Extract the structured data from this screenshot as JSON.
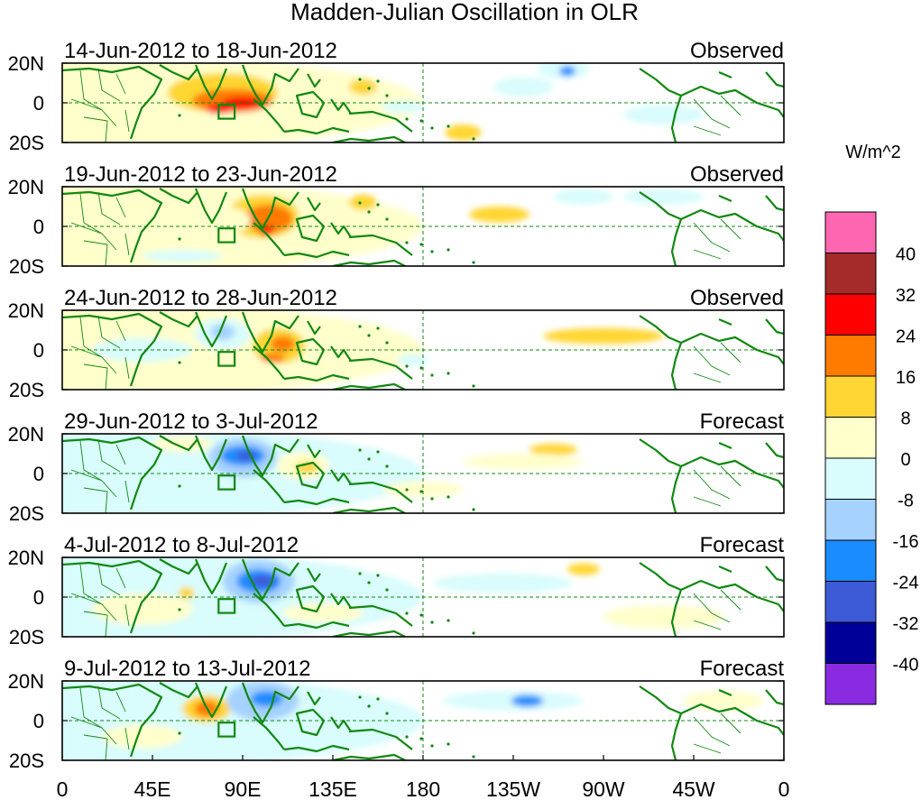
{
  "chart_data": {
    "type": "heatmap",
    "title": "Madden-Julian Oscillation in OLR",
    "units": "W/m^2",
    "x_ticks": [
      "0",
      "45E",
      "90E",
      "135E",
      "180",
      "135W",
      "90W",
      "45W",
      "0"
    ],
    "x_range_deg_east": [
      0,
      360
    ],
    "y_ticks": [
      "20N",
      "0",
      "20S"
    ],
    "y_range_deg": [
      -20,
      20
    ],
    "colorbar": {
      "labels": [
        "40",
        "32",
        "24",
        "16",
        "8",
        "0",
        "-8",
        "-16",
        "-24",
        "-32",
        "-40"
      ],
      "colors": [
        "#ff66b2",
        "#a52a2a",
        "#ff0000",
        "#ff7b00",
        "#ffd633",
        "#ffffcc",
        "#d9fcfc",
        "#a6d2ff",
        "#1a8cff",
        "#3c5ad6",
        "#000099",
        "#8a2be2"
      ]
    },
    "panels": [
      {
        "period": "14-Jun-2012 to 18-Jun-2012",
        "status": "Observed",
        "anomalies": [
          {
            "lon": 0,
            "lat": 0,
            "w": 360,
            "h": 50,
            "value": 2
          },
          {
            "lon": 80,
            "lat": 5,
            "w": 55,
            "h": 20,
            "value": 14
          },
          {
            "lon": 85,
            "lat": 1,
            "w": 40,
            "h": 12,
            "value": 22
          },
          {
            "lon": 90,
            "lat": 0,
            "w": 20,
            "h": 6,
            "value": 30
          },
          {
            "lon": 78,
            "lat": -3,
            "w": 12,
            "h": 5,
            "value": 30
          },
          {
            "lon": 150,
            "lat": 8,
            "w": 14,
            "h": 8,
            "value": 9
          },
          {
            "lon": 170,
            "lat": -2,
            "w": 22,
            "h": 6,
            "value": -3
          },
          {
            "lon": 200,
            "lat": -15,
            "w": 18,
            "h": 8,
            "value": 9
          },
          {
            "lon": 250,
            "lat": 17,
            "w": 26,
            "h": 10,
            "value": -5
          },
          {
            "lon": 252,
            "lat": 16,
            "w": 8,
            "h": 5,
            "value": -20
          },
          {
            "lon": 230,
            "lat": 8,
            "w": 30,
            "h": 10,
            "value": -4
          },
          {
            "lon": 300,
            "lat": -6,
            "w": 40,
            "h": 10,
            "value": -3
          }
        ]
      },
      {
        "period": "19-Jun-2012 to 23-Jun-2012",
        "status": "Observed",
        "anomalies": [
          {
            "lon": 0,
            "lat": 0,
            "w": 360,
            "h": 50,
            "value": 2
          },
          {
            "lon": 100,
            "lat": 5,
            "w": 36,
            "h": 22,
            "value": 14
          },
          {
            "lon": 103,
            "lat": 4,
            "w": 24,
            "h": 14,
            "value": 22
          },
          {
            "lon": 102,
            "lat": -2,
            "w": 8,
            "h": 5,
            "value": 30
          },
          {
            "lon": 80,
            "lat": 3,
            "w": 28,
            "h": 14,
            "value": 6
          },
          {
            "lon": 150,
            "lat": 12,
            "w": 14,
            "h": 8,
            "value": 10
          },
          {
            "lon": 218,
            "lat": 6,
            "w": 30,
            "h": 8,
            "value": 10
          },
          {
            "lon": 260,
            "lat": 15,
            "w": 30,
            "h": 8,
            "value": -6
          },
          {
            "lon": 60,
            "lat": -15,
            "w": 40,
            "h": 6,
            "value": -4
          },
          {
            "lon": 300,
            "lat": 15,
            "w": 40,
            "h": 8,
            "value": -4
          }
        ]
      },
      {
        "period": "24-Jun-2012 to 28-Jun-2012",
        "status": "Observed",
        "anomalies": [
          {
            "lon": 0,
            "lat": 0,
            "w": 360,
            "h": 50,
            "value": 2
          },
          {
            "lon": 80,
            "lat": 8,
            "w": 28,
            "h": 16,
            "value": -6
          },
          {
            "lon": 80,
            "lat": 9,
            "w": 12,
            "h": 8,
            "value": -16
          },
          {
            "lon": 108,
            "lat": 2,
            "w": 26,
            "h": 18,
            "value": 10
          },
          {
            "lon": 110,
            "lat": 3,
            "w": 12,
            "h": 8,
            "value": 18
          },
          {
            "lon": 105,
            "lat": -4,
            "w": 12,
            "h": 5,
            "value": 20
          },
          {
            "lon": 270,
            "lat": 7,
            "w": 60,
            "h": 8,
            "value": 8
          },
          {
            "lon": 175,
            "lat": -5,
            "w": 16,
            "h": 6,
            "value": -5
          },
          {
            "lon": 150,
            "lat": 10,
            "w": 24,
            "h": 8,
            "value": 4
          },
          {
            "lon": 40,
            "lat": 0,
            "w": 50,
            "h": 12,
            "value": -3
          }
        ]
      },
      {
        "period": "29-Jun-2012 to 3-Jul-2012",
        "status": "Forecast",
        "anomalies": [
          {
            "lon": 0,
            "lat": 0,
            "w": 360,
            "h": 50,
            "value": -2
          },
          {
            "lon": 90,
            "lat": 8,
            "w": 34,
            "h": 20,
            "value": -10
          },
          {
            "lon": 90,
            "lat": 9,
            "w": 22,
            "h": 10,
            "value": -20
          },
          {
            "lon": 92,
            "lat": 9,
            "w": 10,
            "h": 5,
            "value": -28
          },
          {
            "lon": 120,
            "lat": 4,
            "w": 26,
            "h": 14,
            "value": 6
          },
          {
            "lon": 122,
            "lat": 3,
            "w": 12,
            "h": 6,
            "value": 10
          },
          {
            "lon": 245,
            "lat": 12,
            "w": 24,
            "h": 6,
            "value": 10
          },
          {
            "lon": 230,
            "lat": 6,
            "w": 60,
            "h": 8,
            "value": 4
          },
          {
            "lon": 60,
            "lat": 15,
            "w": 30,
            "h": 8,
            "value": 3
          },
          {
            "lon": 180,
            "lat": -8,
            "w": 40,
            "h": 8,
            "value": 3
          }
        ]
      },
      {
        "period": "4-Jul-2012 to 8-Jul-2012",
        "status": "Forecast",
        "anomalies": [
          {
            "lon": 0,
            "lat": 0,
            "w": 360,
            "h": 50,
            "value": -2
          },
          {
            "lon": 98,
            "lat": 8,
            "w": 36,
            "h": 22,
            "value": -10
          },
          {
            "lon": 98,
            "lat": 8,
            "w": 22,
            "h": 12,
            "value": -20
          },
          {
            "lon": 100,
            "lat": 8,
            "w": 12,
            "h": 6,
            "value": -30
          },
          {
            "lon": 220,
            "lat": 7,
            "w": 70,
            "h": 10,
            "value": -7
          },
          {
            "lon": 260,
            "lat": 14,
            "w": 16,
            "h": 6,
            "value": 10
          },
          {
            "lon": 62,
            "lat": 2,
            "w": 8,
            "h": 6,
            "value": 10
          },
          {
            "lon": 40,
            "lat": -6,
            "w": 50,
            "h": 16,
            "value": 3
          },
          {
            "lon": 300,
            "lat": -10,
            "w": 60,
            "h": 12,
            "value": 3
          },
          {
            "lon": 130,
            "lat": -8,
            "w": 40,
            "h": 10,
            "value": 3
          }
        ]
      },
      {
        "period": "9-Jul-2012 to 13-Jul-2012",
        "status": "Forecast",
        "anomalies": [
          {
            "lon": 0,
            "lat": 0,
            "w": 360,
            "h": 50,
            "value": -2
          },
          {
            "lon": 72,
            "lat": 6,
            "w": 24,
            "h": 14,
            "value": 8
          },
          {
            "lon": 72,
            "lat": 6,
            "w": 12,
            "h": 8,
            "value": 18
          },
          {
            "lon": 100,
            "lat": 10,
            "w": 36,
            "h": 20,
            "value": -10
          },
          {
            "lon": 102,
            "lat": 11,
            "w": 16,
            "h": 8,
            "value": -20
          },
          {
            "lon": 225,
            "lat": 10,
            "w": 70,
            "h": 10,
            "value": -8
          },
          {
            "lon": 232,
            "lat": 10,
            "w": 16,
            "h": 6,
            "value": -18
          },
          {
            "lon": 330,
            "lat": 10,
            "w": 40,
            "h": 10,
            "value": 3
          },
          {
            "lon": 40,
            "lat": -8,
            "w": 40,
            "h": 12,
            "value": 3
          },
          {
            "lon": 150,
            "lat": 0,
            "w": 40,
            "h": 10,
            "value": -3
          }
        ]
      }
    ]
  }
}
